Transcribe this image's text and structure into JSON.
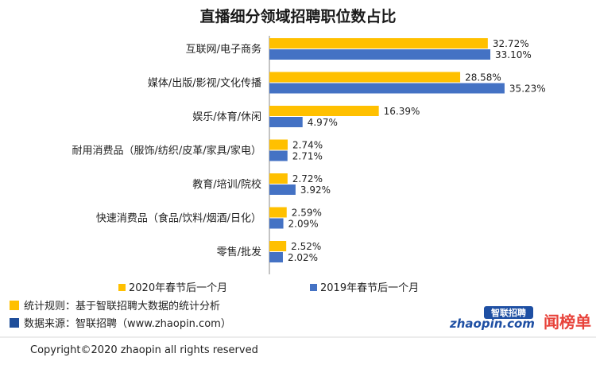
{
  "chart_data": {
    "type": "bar",
    "orientation": "horizontal",
    "title": "直播细分领域招聘职位数占比",
    "categories": [
      "互联网/电子商务",
      "媒体/出版/影视/文化传播",
      "娱乐/体育/休闲",
      "耐用消费品（服饰/纺织/皮革/家具/家电）",
      "教育/培训/院校",
      "快速消费品（食品/饮料/烟酒/日化）",
      "零售/批发"
    ],
    "series": [
      {
        "name": "2020年春节后一个月",
        "color": "#FFC000",
        "values": [
          32.72,
          28.58,
          16.39,
          2.74,
          2.72,
          2.59,
          2.52
        ],
        "labels": [
          "32.72%",
          "28.58%",
          "16.39%",
          "2.74%",
          "2.72%",
          "2.59%",
          "2.52%"
        ]
      },
      {
        "name": "2019年春节后一个月",
        "color": "#4472C4",
        "values": [
          33.1,
          35.23,
          4.97,
          2.71,
          3.92,
          2.09,
          2.02
        ],
        "labels": [
          "33.10%",
          "35.23%",
          "4.97%",
          "2.71%",
          "3.92%",
          "2.09%",
          "2.02%"
        ]
      }
    ],
    "xlim": [
      0,
      36
    ],
    "unit": "%",
    "legend_position": "bottom",
    "grid": false
  },
  "notes": [
    {
      "text": "统计规则：基于智联招聘大数据的统计分析",
      "color": "#FFC000"
    },
    {
      "text": "数据来源：智联招聘（www.zhaopin.com）",
      "color": "#1F4E9A"
    }
  ],
  "logos": {
    "zhaopin_text": "zhaopin.com",
    "zhaopin_badge": "智联招聘",
    "right_logo": "闻榜单"
  },
  "copyright": "Copyright©2020 zhaopin all rights reserved"
}
